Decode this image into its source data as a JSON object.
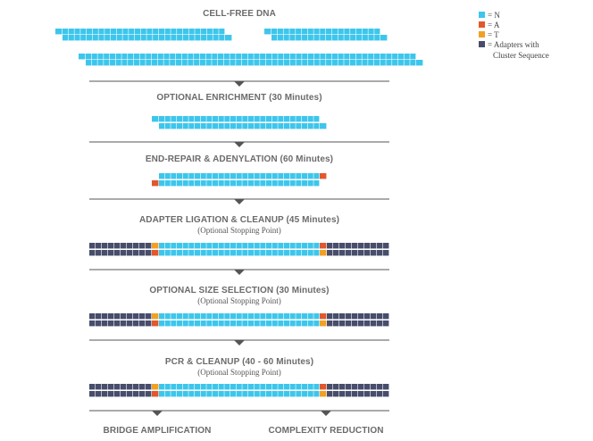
{
  "colors": {
    "N": "#3dc6ec",
    "A": "#e2572b",
    "T": "#f2a024",
    "adapter": "#474d6b",
    "divider": "#555555"
  },
  "legend": {
    "items": [
      {
        "key": "N",
        "label": "= N"
      },
      {
        "key": "A",
        "label": "= A"
      },
      {
        "key": "T",
        "label": "= T"
      },
      {
        "key": "adapter",
        "label": "= Adapters with",
        "label_line2": "Cluster Sequence"
      }
    ]
  },
  "steps": [
    {
      "id": "cell-free-dna",
      "title": "CELL-FREE DNA"
    },
    {
      "id": "optional-enrichment",
      "title": "OPTIONAL ENRICHMENT (30 Minutes)"
    },
    {
      "id": "end-repair",
      "title": "END-REPAIR & ADENYLATION (60 Minutes)"
    },
    {
      "id": "adapter-ligation",
      "title": "ADAPTER LIGATION & CLEANUP (45 Minutes)",
      "subtitle": "(Optional Stopping Point)"
    },
    {
      "id": "size-selection",
      "title": "OPTIONAL SIZE SELECTION (30 Minutes)",
      "subtitle": "(Optional Stopping Point)"
    },
    {
      "id": "pcr-cleanup",
      "title": "PCR & CLEANUP (40 - 60 Minutes)",
      "subtitle": "(Optional Stopping Point)"
    }
  ],
  "outputs": [
    {
      "id": "bridge-amplification",
      "label": "BRIDGE AMPLIFICATION"
    },
    {
      "id": "complexity-reduction",
      "label": "COMPLEXITY REDUCTION"
    }
  ]
}
